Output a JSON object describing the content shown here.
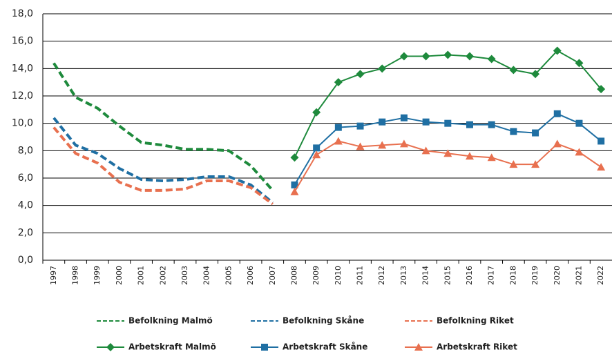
{
  "chart_data": {
    "type": "line",
    "categories": [
      "1997",
      "1998",
      "1999",
      "2000",
      "2001",
      "2002",
      "2003",
      "2004",
      "2005",
      "2006",
      "2007",
      "2008",
      "2009",
      "2010",
      "2011",
      "2012",
      "2013",
      "2014",
      "2015",
      "2016",
      "2017",
      "2018",
      "2019",
      "2020",
      "2021",
      "2022"
    ],
    "series": [
      {
        "name": "Befolkning Malmö",
        "color": "#1e8a3c",
        "dashed": true,
        "values": [
          14.4,
          11.9,
          11.1,
          9.8,
          8.6,
          8.4,
          8.1,
          8.1,
          8.0,
          6.9,
          5.1,
          null,
          null,
          null,
          null,
          null,
          null,
          null,
          null,
          null,
          null,
          null,
          null,
          null,
          null,
          null
        ]
      },
      {
        "name": "Befolkning Skåne",
        "color": "#1f6fa3",
        "dashed": true,
        "values": [
          10.4,
          8.4,
          7.8,
          6.7,
          5.9,
          5.8,
          5.9,
          6.1,
          6.1,
          5.5,
          4.2,
          null,
          null,
          null,
          null,
          null,
          null,
          null,
          null,
          null,
          null,
          null,
          null,
          null,
          null,
          null
        ]
      },
      {
        "name": "Befolkning Riket",
        "color": "#e8704f",
        "dashed": true,
        "values": [
          9.7,
          7.8,
          7.1,
          5.7,
          5.1,
          5.1,
          5.2,
          5.8,
          5.8,
          5.3,
          4.1,
          null,
          null,
          null,
          null,
          null,
          null,
          null,
          null,
          null,
          null,
          null,
          null,
          null,
          null,
          null
        ]
      },
      {
        "name": "Arbetskraft Malmö",
        "color": "#1e8a3c",
        "marker": "diamond",
        "values": [
          null,
          null,
          null,
          null,
          null,
          null,
          null,
          null,
          null,
          null,
          null,
          7.5,
          10.8,
          13.0,
          13.6,
          14.0,
          14.9,
          14.9,
          15.0,
          14.9,
          14.7,
          13.9,
          13.6,
          15.3,
          14.4,
          12.5
        ]
      },
      {
        "name": "Arbetskraft Skåne",
        "color": "#1f6fa3",
        "marker": "square",
        "values": [
          null,
          null,
          null,
          null,
          null,
          null,
          null,
          null,
          null,
          null,
          null,
          5.5,
          8.2,
          9.7,
          9.8,
          10.1,
          10.4,
          10.1,
          10.0,
          9.9,
          9.9,
          9.4,
          9.3,
          10.7,
          10.0,
          8.7
        ]
      },
      {
        "name": "Arbetskraft Riket",
        "color": "#e8704f",
        "marker": "triangle",
        "values": [
          null,
          null,
          null,
          null,
          null,
          null,
          null,
          null,
          null,
          null,
          null,
          5.0,
          7.7,
          8.7,
          8.3,
          8.4,
          8.5,
          8.0,
          7.8,
          7.6,
          7.5,
          7.0,
          7.0,
          8.5,
          7.9,
          6.8
        ]
      }
    ],
    "ylim": [
      0,
      18
    ],
    "yticks": [
      {
        "value": 0,
        "label": "0,0"
      },
      {
        "value": 2,
        "label": "2,0"
      },
      {
        "value": 4,
        "label": "4,0"
      },
      {
        "value": 6,
        "label": "6,0"
      },
      {
        "value": 8,
        "label": "8,0"
      },
      {
        "value": 10,
        "label": "10,0"
      },
      {
        "value": 12,
        "label": "12,0"
      },
      {
        "value": 14,
        "label": "14,0"
      },
      {
        "value": 16,
        "label": "16,0"
      },
      {
        "value": 18,
        "label": "18,0"
      }
    ],
    "grid": true,
    "legend": "bottom"
  }
}
